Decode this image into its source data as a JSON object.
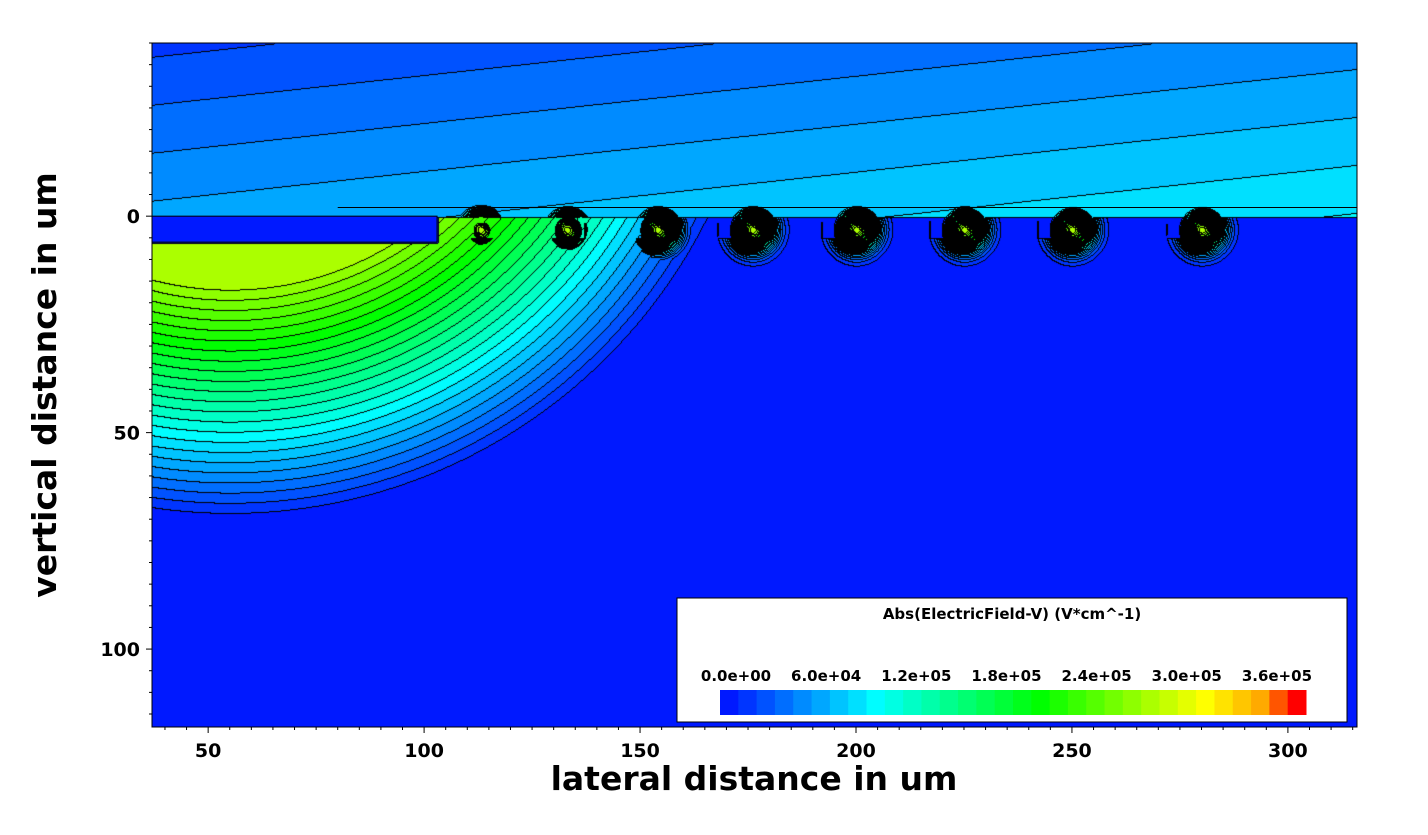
{
  "chart_data": {
    "type": "heatmap",
    "title": "",
    "xlabel": "lateral distance in um",
    "ylabel": "vertical distance in um",
    "xlim": [
      37,
      316
    ],
    "ylim": [
      118,
      -40
    ],
    "y_inverted": true,
    "x_ticks": [
      {
        "value": 50,
        "label": "50"
      },
      {
        "value": 100,
        "label": "100"
      },
      {
        "value": 150,
        "label": "150"
      },
      {
        "value": 200,
        "label": "200"
      },
      {
        "value": 250,
        "label": "250"
      },
      {
        "value": 300,
        "label": "300"
      }
    ],
    "y_ticks": [
      {
        "value": 0,
        "label": "0"
      },
      {
        "value": 50,
        "label": "50"
      },
      {
        "value": 100,
        "label": "100"
      }
    ],
    "colorbar": {
      "title": "Abs(ElectricField-V) (V*cm^-1)",
      "min": 0,
      "max": 390000,
      "levels": 32,
      "tick_labels": [
        "0.0e+00",
        "6.0e+04",
        "1.2e+05",
        "1.8e+05",
        "2.4e+05",
        "3.0e+05",
        "3.6e+05"
      ],
      "tick_values": [
        0,
        60000,
        120000,
        180000,
        240000,
        300000,
        360000
      ],
      "colors": [
        "#0019ff",
        "#0035ff",
        "#0052ff",
        "#006eff",
        "#008bff",
        "#00a7ff",
        "#00c4ff",
        "#00e0ff",
        "#00fdff",
        "#00ffe3",
        "#00ffc6",
        "#00ffaa",
        "#00ff8d",
        "#00ff71",
        "#00ff54",
        "#00ff38",
        "#00ff1b",
        "#00ff00",
        "#1cff00",
        "#39ff00",
        "#55ff00",
        "#72ff00",
        "#8eff00",
        "#abff00",
        "#c7ff00",
        "#e4ff00",
        "#ffff00",
        "#ffe300",
        "#ffc600",
        "#ffaa00",
        "#ff5500",
        "#ff0000"
      ],
      "position": "bottom-right"
    },
    "field_rings": {
      "x_centers": [
        113,
        133,
        154,
        176,
        200,
        225,
        250,
        280
      ],
      "y_level": 0,
      "peak_field": 370000
    },
    "surface_layer": {
      "x_start": 37,
      "x_end": 103,
      "y_top": 0,
      "y_bottom": 6
    }
  }
}
